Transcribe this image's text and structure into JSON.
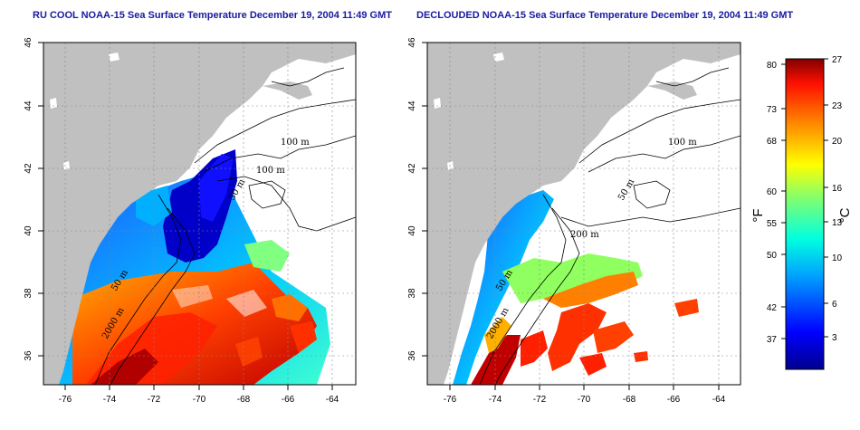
{
  "titles": {
    "left": "RU COOL NOAA-15 Sea Surface Temperature December 19, 2004 11:49 GMT",
    "right": "DECLOUDED NOAA-15 Sea Surface Temperature December 19, 2004 11:49 GMT"
  },
  "axes": {
    "lon_labels": [
      "-76",
      "-74",
      "-72",
      "-70",
      "-68",
      "-66",
      "-64"
    ],
    "lat_labels": [
      "36",
      "38",
      "40",
      "42",
      "44",
      "46"
    ]
  },
  "contour_labels": {
    "left": [
      "100 m",
      "100 m",
      "50 m",
      "50 m",
      "2000 m"
    ],
    "right": [
      "100 m",
      "50 m",
      "200 m",
      "50 m",
      "2000 m"
    ]
  },
  "colorbar": {
    "fahrenheit_ticks": [
      "80",
      "73",
      "68",
      "60",
      "55",
      "50",
      "42",
      "37"
    ],
    "celsius_ticks": [
      "27",
      "23",
      "20",
      "16",
      "13",
      "10",
      "6",
      "3"
    ],
    "fahrenheit_unit": "°F",
    "celsius_unit": "°C"
  },
  "colors": {
    "land": "#c0c0c0",
    "title": "#1a1aa0"
  }
}
